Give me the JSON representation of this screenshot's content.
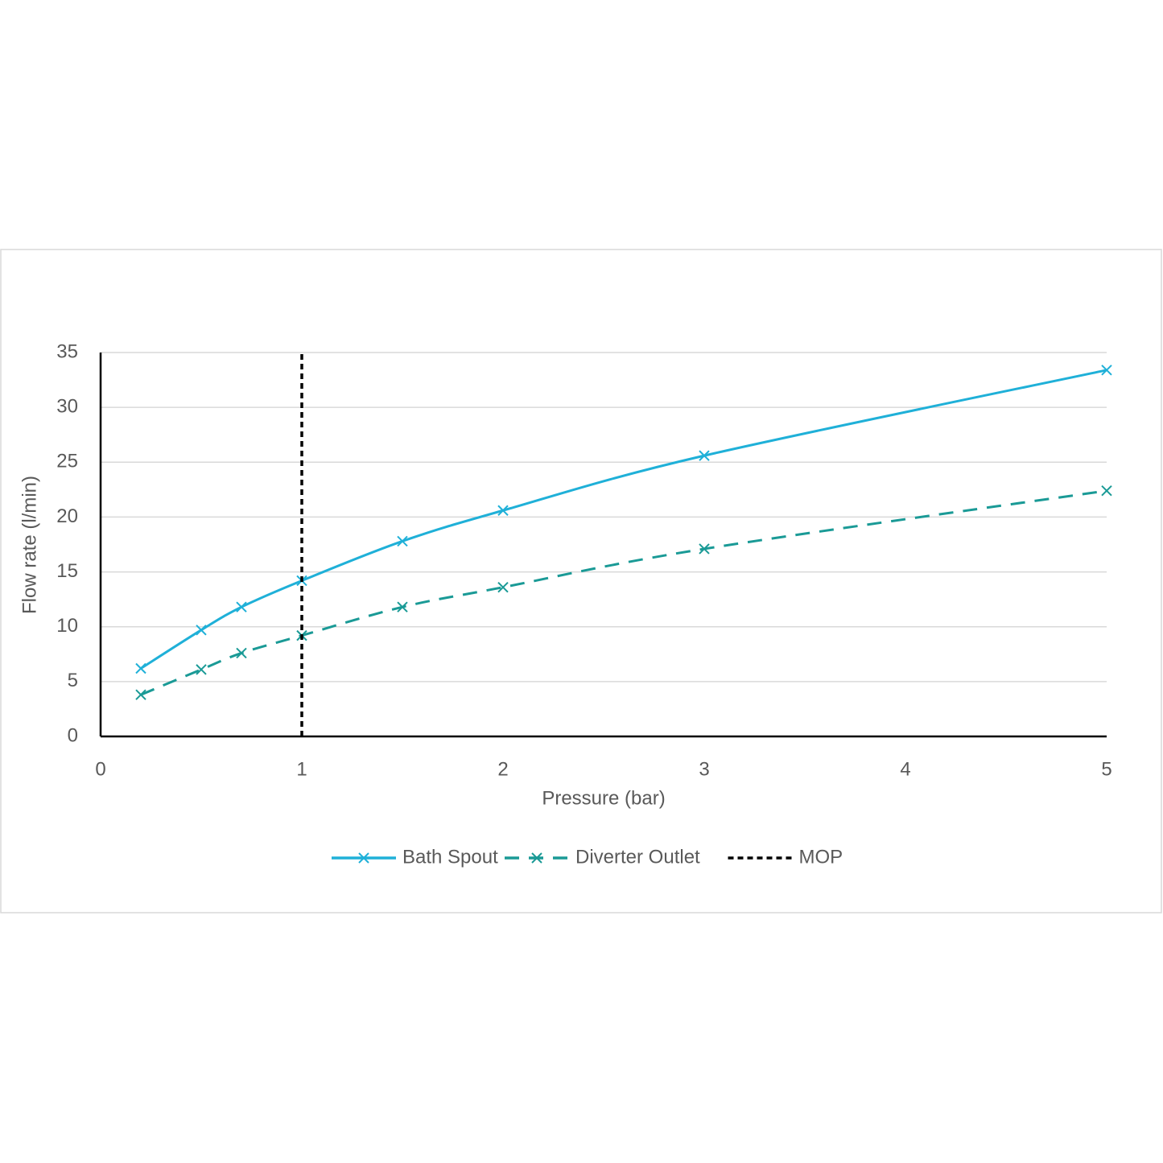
{
  "chart_data": {
    "type": "line",
    "x_label": "Pressure (bar)",
    "y_label": "Flow rate (l/min)",
    "xlim": [
      0,
      5
    ],
    "xticks": [
      0,
      1,
      2,
      3,
      4,
      5
    ],
    "ylim": [
      0,
      35
    ],
    "yticks": [
      0,
      5,
      10,
      15,
      20,
      25,
      30,
      35
    ],
    "grid": true,
    "legend": "bottom",
    "smooth": true,
    "series": [
      {
        "name": "Bath Spout",
        "color": "#1fb0d8",
        "line_style": "solid",
        "marker": "x",
        "x": [
          0.2,
          0.5,
          0.7,
          1,
          1.5,
          2,
          3,
          5
        ],
        "values": [
          6.2,
          9.7,
          11.8,
          14.2,
          17.8,
          20.6,
          25.6,
          33.4
        ]
      },
      {
        "name": "Diverter Outlet",
        "color": "#1a9a96",
        "line_style": "dashed",
        "marker": "x",
        "x": [
          0.2,
          0.5,
          0.7,
          1,
          1.5,
          2,
          3,
          5
        ],
        "values": [
          3.8,
          6.1,
          7.6,
          9.2,
          11.8,
          13.6,
          17.1,
          22.4
        ]
      },
      {
        "name": "MOP",
        "color": "#000000",
        "line_style": "dotted",
        "marker": "none",
        "x": [
          1,
          1
        ],
        "values": [
          0,
          35
        ]
      }
    ]
  }
}
